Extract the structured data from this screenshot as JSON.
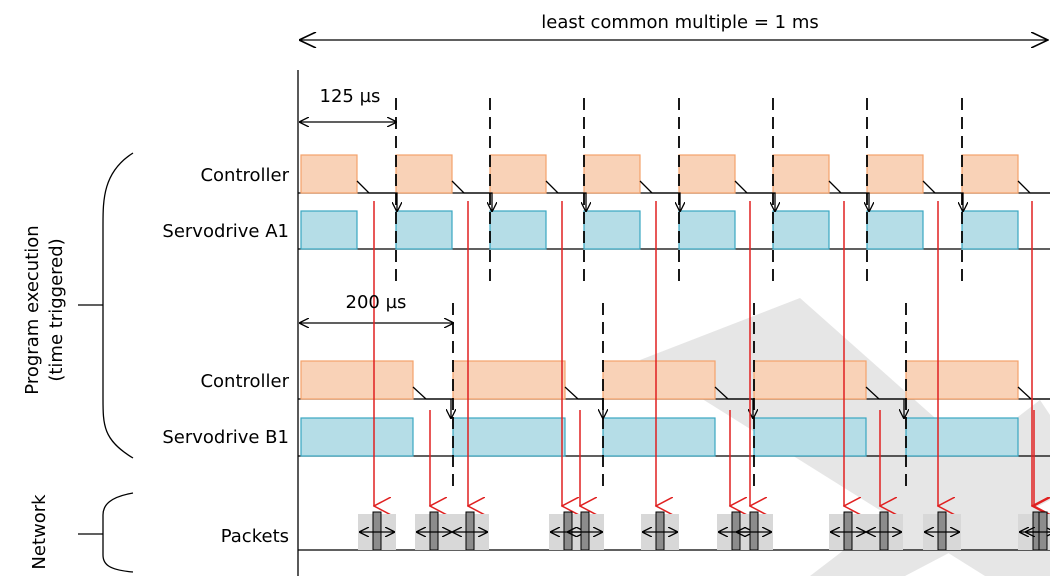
{
  "title_span": "least common multiple = 1 ms",
  "period_a": "125 µs",
  "period_b": "200 µs",
  "group_label": [
    "Program execution",
    "(time triggered)"
  ],
  "network_label": "Network",
  "rows": {
    "ctrl_a": "Controller",
    "servo_a": "Servodrive A1",
    "ctrl_b": "Controller",
    "servo_b": "Servodrive B1",
    "packets": "Packets"
  },
  "colors": {
    "controller_fill": "#f9d2b7",
    "controller_stroke": "#f4a26b",
    "servo_fill": "#b5dde7",
    "servo_stroke": "#3aa6c2",
    "network_arrow": "#e02020",
    "packet_fill": "#8c8c8c",
    "packet_bg": "#d8d8d8",
    "watermark": "#e6e6e6"
  }
}
